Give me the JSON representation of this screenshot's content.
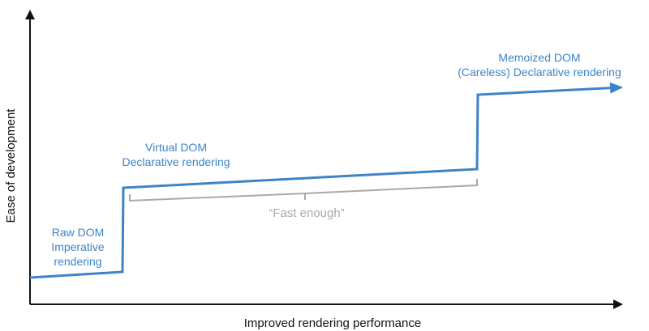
{
  "axes": {
    "x_label": "Improved rendering performance",
    "y_label": "Ease of development"
  },
  "stages": [
    {
      "title": "Raw DOM",
      "subtitle_lines": [
        "Imperative",
        "rendering"
      ]
    },
    {
      "title": "Virtual DOM",
      "subtitle_lines": [
        "Declarative rendering"
      ]
    },
    {
      "title": "Memoized DOM",
      "subtitle_lines": [
        "(Careless) Declarative rendering"
      ]
    }
  ],
  "annotation": {
    "label": "“Fast enough”"
  },
  "colors": {
    "curve": "#3d84c6",
    "axis": "#111111",
    "bracket": "#a9a9a9"
  }
}
